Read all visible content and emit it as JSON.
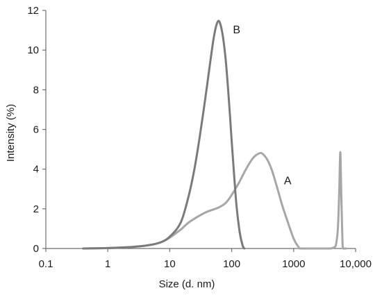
{
  "chart_data": {
    "type": "line",
    "title": "",
    "xlabel": "Size (d. nm)",
    "ylabel": "Intensity (%)",
    "x_scale": "log",
    "xlim": [
      0.1,
      10000
    ],
    "ylim": [
      0,
      12
    ],
    "x_ticks": [
      {
        "value": 0.1,
        "label": "0.1"
      },
      {
        "value": 1,
        "label": "1"
      },
      {
        "value": 10,
        "label": "10"
      },
      {
        "value": 100,
        "label": "100"
      },
      {
        "value": 1000,
        "label": "1000"
      },
      {
        "value": 10000,
        "label": "10,000"
      }
    ],
    "y_ticks": [
      0,
      2,
      4,
      6,
      8,
      10,
      12
    ],
    "grid": false,
    "legend": "none",
    "series": [
      {
        "name": "A",
        "color": "#a6a6a6",
        "points": [
          [
            0.4,
            0
          ],
          [
            1,
            0.02
          ],
          [
            2,
            0.06
          ],
          [
            4,
            0.14
          ],
          [
            7,
            0.3
          ],
          [
            10,
            0.55
          ],
          [
            15,
            0.95
          ],
          [
            20,
            1.3
          ],
          [
            30,
            1.65
          ],
          [
            40,
            1.85
          ],
          [
            60,
            2.05
          ],
          [
            80,
            2.3
          ],
          [
            100,
            2.7
          ],
          [
            130,
            3.3
          ],
          [
            170,
            4.0
          ],
          [
            220,
            4.55
          ],
          [
            280,
            4.8
          ],
          [
            320,
            4.75
          ],
          [
            380,
            4.45
          ],
          [
            450,
            3.9
          ],
          [
            550,
            3.0
          ],
          [
            650,
            2.2
          ],
          [
            800,
            1.35
          ],
          [
            1000,
            0.5
          ],
          [
            1200,
            0.08
          ],
          [
            1350,
            0
          ],
          [
            4000,
            0
          ],
          [
            5000,
            0.5
          ],
          [
            5400,
            2.5
          ],
          [
            5650,
            4.85
          ],
          [
            5850,
            3.0
          ],
          [
            6100,
            0.6
          ],
          [
            6300,
            0
          ],
          [
            7000,
            0
          ]
        ]
      },
      {
        "name": "B",
        "color": "#7a7a7a",
        "points": [
          [
            0.4,
            0
          ],
          [
            1,
            0.02
          ],
          [
            2,
            0.06
          ],
          [
            4,
            0.14
          ],
          [
            7,
            0.3
          ],
          [
            10,
            0.6
          ],
          [
            15,
            1.3
          ],
          [
            20,
            2.6
          ],
          [
            25,
            4.0
          ],
          [
            30,
            5.5
          ],
          [
            35,
            6.9
          ],
          [
            40,
            8.2
          ],
          [
            45,
            9.4
          ],
          [
            50,
            10.4
          ],
          [
            55,
            11.1
          ],
          [
            60,
            11.45
          ],
          [
            65,
            11.35
          ],
          [
            72,
            10.7
          ],
          [
            80,
            9.5
          ],
          [
            90,
            7.5
          ],
          [
            100,
            5.4
          ],
          [
            110,
            3.6
          ],
          [
            120,
            2.1
          ],
          [
            135,
            0.8
          ],
          [
            150,
            0.15
          ],
          [
            160,
            0
          ]
        ]
      }
    ],
    "annotations": [
      {
        "text": "B",
        "x": 120,
        "y": 11.05
      },
      {
        "text": "A",
        "x": 800,
        "y": 3.45
      }
    ]
  }
}
